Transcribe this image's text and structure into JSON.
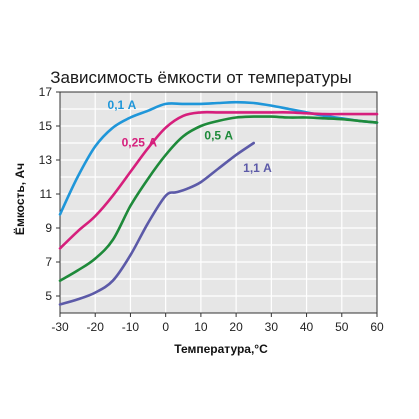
{
  "chart_data": {
    "type": "line",
    "title": "Зависимость ёмкости от температуры",
    "xlabel": "Температура,°C",
    "ylabel": "Ёмкость,  Ач",
    "xlim": [
      -30,
      60
    ],
    "ylim": [
      4,
      17
    ],
    "x_ticks": [
      -30,
      -20,
      -10,
      0,
      10,
      20,
      30,
      40,
      50,
      60
    ],
    "y_ticks": [
      5,
      7,
      9,
      11,
      13,
      15,
      17
    ],
    "grid": true,
    "background_color": "#e6e6e6",
    "grid_color": "#ffffff",
    "series": [
      {
        "name": "0,1 А",
        "color": "#1f96d9",
        "label_at": [
          -16.5,
          16.0
        ],
        "x": [
          -30,
          -25,
          -20,
          -15,
          -10,
          -5,
          0,
          5,
          10,
          15,
          20,
          25,
          30,
          35,
          40,
          45,
          50,
          55,
          60
        ],
        "y": [
          9.8,
          12.0,
          13.8,
          14.9,
          15.5,
          15.9,
          16.3,
          16.3,
          16.3,
          16.35,
          16.4,
          16.35,
          16.2,
          16.0,
          15.8,
          15.6,
          15.45,
          15.3,
          15.2
        ]
      },
      {
        "name": "0,25 А",
        "color": "#d61f7c",
        "label_at": [
          -12.5,
          13.8
        ],
        "x": [
          -30,
          -25,
          -20,
          -15,
          -10,
          -5,
          0,
          5,
          10,
          15,
          20,
          25,
          30,
          35,
          40,
          45,
          50,
          55,
          60
        ],
        "y": [
          7.8,
          8.8,
          9.7,
          10.9,
          12.3,
          13.7,
          14.9,
          15.6,
          15.8,
          15.8,
          15.8,
          15.8,
          15.8,
          15.8,
          15.75,
          15.7,
          15.7,
          15.7,
          15.7
        ]
      },
      {
        "name": "0,5 А",
        "color": "#1e8a3a",
        "label_at": [
          11.0,
          14.2
        ],
        "x": [
          -30,
          -25,
          -20,
          -15,
          -10,
          -5,
          0,
          5,
          10,
          15,
          20,
          25,
          30,
          35,
          40,
          45,
          50,
          55,
          60
        ],
        "y": [
          5.9,
          6.5,
          7.2,
          8.3,
          10.3,
          11.9,
          13.3,
          14.4,
          15.0,
          15.3,
          15.5,
          15.55,
          15.55,
          15.5,
          15.5,
          15.45,
          15.4,
          15.3,
          15.2
        ]
      },
      {
        "name": "1,1 А",
        "color": "#5c5aa8",
        "label_at": [
          22.0,
          12.3
        ],
        "x": [
          -30,
          -25,
          -20,
          -15,
          -10,
          -5,
          0,
          3,
          6,
          10,
          15,
          20,
          25
        ],
        "y": [
          4.5,
          4.8,
          5.2,
          5.9,
          7.4,
          9.3,
          10.9,
          11.1,
          11.3,
          11.7,
          12.5,
          13.3,
          14.0
        ]
      }
    ]
  }
}
